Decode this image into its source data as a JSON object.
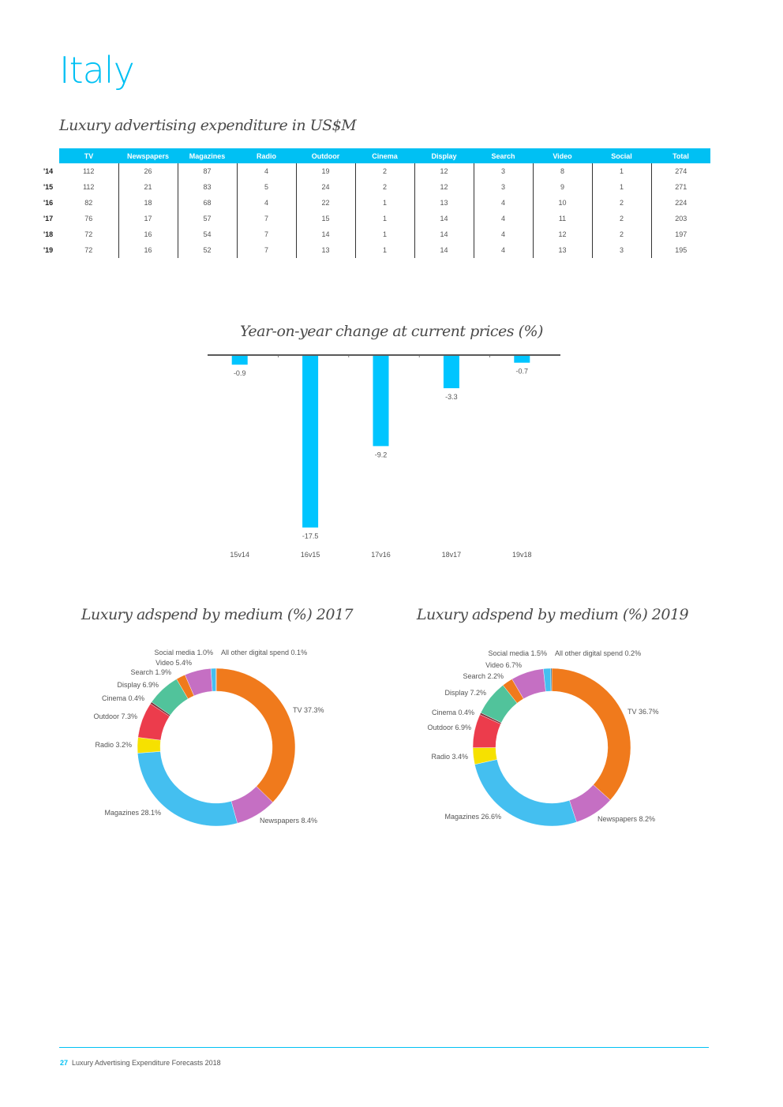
{
  "page": {
    "title": "Italy"
  },
  "table": {
    "title": "Luxury advertising expenditure in US$M",
    "columns": [
      "TV",
      "Newspapers",
      "Magazines",
      "Radio",
      "Outdoor",
      "Cinema",
      "Display",
      "Search",
      "Video",
      "Social",
      "Total"
    ],
    "rows": [
      {
        "year": "'14",
        "values": [
          "112",
          "26",
          "87",
          "4",
          "19",
          "2",
          "12",
          "3",
          "8",
          "1",
          "274"
        ]
      },
      {
        "year": "'15",
        "values": [
          "112",
          "21",
          "83",
          "5",
          "24",
          "2",
          "12",
          "3",
          "9",
          "1",
          "271"
        ]
      },
      {
        "year": "'16",
        "values": [
          "82",
          "18",
          "68",
          "4",
          "22",
          "1",
          "13",
          "4",
          "10",
          "2",
          "224"
        ]
      },
      {
        "year": "'17",
        "values": [
          "76",
          "17",
          "57",
          "7",
          "15",
          "1",
          "14",
          "4",
          "11",
          "2",
          "203"
        ]
      },
      {
        "year": "'18",
        "values": [
          "72",
          "16",
          "54",
          "7",
          "14",
          "1",
          "14",
          "4",
          "12",
          "2",
          "197"
        ]
      },
      {
        "year": "'19",
        "values": [
          "72",
          "16",
          "52",
          "7",
          "13",
          "1",
          "14",
          "4",
          "13",
          "3",
          "195"
        ]
      }
    ]
  },
  "colors": {
    "accent": "#00c0f3",
    "bar": "#00c5ff",
    "TV": "#f07a1c",
    "Newspapers": "#c56fc3",
    "Magazines": "#44bff0",
    "Radio": "#f6e100",
    "Outdoor": "#ec3c4c",
    "Cinema": "#7a3038",
    "Display": "#51c39b",
    "Search": "#f07a1c",
    "Video": "#c56fc3",
    "Social media": "#44bff0",
    "All other digital spend": "#1f6e9a"
  },
  "chart_data": [
    {
      "type": "bar",
      "title": "Year-on-year change at current prices (%)",
      "categories": [
        "15v14",
        "16v15",
        "17v16",
        "18v17",
        "19v18"
      ],
      "values": [
        -0.9,
        -17.5,
        -9.2,
        -3.3,
        -0.7
      ],
      "value_labels": [
        "-0.9",
        "-17.5",
        "-9.2",
        "-3.3",
        "-0.7"
      ],
      "ylim": [
        -18.5,
        0
      ],
      "xlabel": "",
      "ylabel": ""
    },
    {
      "type": "pie",
      "title": "Luxury adspend by medium (%) 2017",
      "categories": [
        "TV",
        "Newspapers",
        "Magazines",
        "Radio",
        "Outdoor",
        "Cinema",
        "Display",
        "Search",
        "Video",
        "Social media",
        "All other digital spend"
      ],
      "values": [
        37.3,
        8.4,
        28.1,
        3.2,
        7.3,
        0.4,
        6.9,
        1.9,
        5.4,
        1.0,
        0.1
      ],
      "labels": [
        "TV 37.3%",
        "Newspapers 8.4%",
        "Magazines 28.1%",
        "Radio 3.2%",
        "Outdoor 7.3%",
        "Cinema 0.4%",
        "Display 6.9%",
        "Search 1.9%",
        "Video 5.4%",
        "Social media 1.0%",
        "All other digital spend 0.1%"
      ]
    },
    {
      "type": "pie",
      "title": "Luxury adspend by medium (%) 2019",
      "categories": [
        "TV",
        "Newspapers",
        "Magazines",
        "Radio",
        "Outdoor",
        "Cinema",
        "Display",
        "Search",
        "Video",
        "Social media",
        "All other digital spend"
      ],
      "values": [
        36.7,
        8.2,
        26.6,
        3.4,
        6.9,
        0.4,
        7.2,
        2.2,
        6.7,
        1.5,
        0.2
      ],
      "labels": [
        "TV 36.7%",
        "Newspapers 8.2%",
        "Magazines 26.6%",
        "Radio 3.4%",
        "Outdoor 6.9%",
        "Cinema 0.4%",
        "Display 7.2%",
        "Search 2.2%",
        "Video 6.7%",
        "Social media 1.5%",
        "All other digital spend 0.2%"
      ]
    }
  ],
  "footer": {
    "page_number": "27",
    "text": "Luxury Advertising Expenditure Forecasts 2018"
  }
}
